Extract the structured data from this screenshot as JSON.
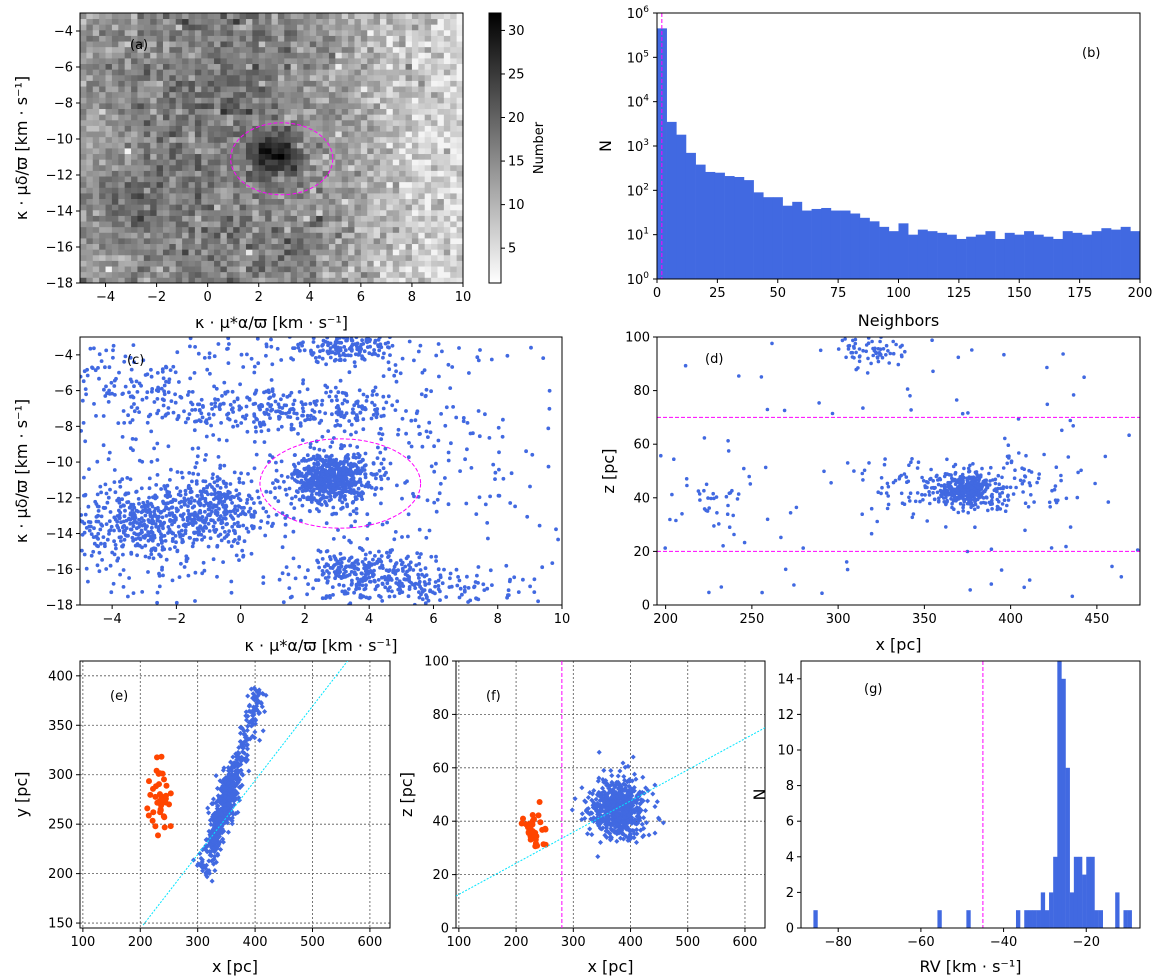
{
  "colors": {
    "blue": "#4169e1",
    "orange": "#ff4500",
    "magenta": "#ff00ff",
    "cyan": "#00e5ff",
    "grid": "#555555"
  },
  "chart_data": [
    {
      "id": "a",
      "type": "heatmap",
      "panel_label": "(a)",
      "xlabel": "κ · μ*α/ϖ   [km · s⁻¹]",
      "ylabel": "κ · μδ/ϖ   [km · s⁻¹]",
      "xlim": [
        -5,
        10
      ],
      "ylim": [
        -18,
        -3
      ],
      "x_ticks": [
        -4,
        -2,
        0,
        2,
        4,
        6,
        8,
        10
      ],
      "y_ticks": [
        -18,
        -16,
        -14,
        -12,
        -10,
        -8,
        -6,
        -4
      ],
      "x_tick_labels": [
        "−4",
        "−2",
        "0",
        "2",
        "4",
        "6",
        "8",
        "10"
      ],
      "y_tick_labels": [
        "−18",
        "−16",
        "−14",
        "−12",
        "−10",
        "−8",
        "−6",
        "−4"
      ],
      "colorbar": {
        "label": "Number",
        "range": [
          1,
          32
        ],
        "ticks": [
          5,
          10,
          15,
          20,
          25,
          30
        ],
        "tick_labels": [
          "5",
          "10",
          "15",
          "20",
          "25",
          "30"
        ]
      },
      "cluster_peak": [
        2.6,
        -10.9
      ],
      "circle": {
        "center": [
          2.9,
          -11.1
        ],
        "radius": 2.0
      }
    },
    {
      "id": "b",
      "type": "bar",
      "panel_label": "(b)",
      "xlabel": "Neighbors",
      "ylabel": "N",
      "xlim": [
        0,
        200
      ],
      "ylim": [
        1,
        1000000
      ],
      "log_y": true,
      "x_ticks": [
        0,
        25,
        50,
        75,
        100,
        125,
        150,
        175,
        200
      ],
      "x_tick_labels": [
        "0",
        "25",
        "50",
        "75",
        "100",
        "125",
        "150",
        "175",
        "200"
      ],
      "y_ticks": [
        1,
        10,
        100,
        1000,
        10000,
        100000,
        1000000
      ],
      "y_tick_mantissa": [
        "10",
        "10",
        "10",
        "10",
        "10",
        "10",
        "10"
      ],
      "y_tick_exponents": [
        "0",
        "1",
        "2",
        "3",
        "4",
        "5",
        "6"
      ],
      "bin_width": 4,
      "bin_starts": [
        0,
        4,
        8,
        12,
        16,
        20,
        24,
        28,
        32,
        36,
        40,
        44,
        48,
        52,
        56,
        60,
        64,
        68,
        72,
        76,
        80,
        84,
        88,
        92,
        96,
        100,
        104,
        108,
        112,
        116,
        120,
        124,
        128,
        132,
        136,
        140,
        144,
        148,
        152,
        156,
        160,
        164,
        168,
        172,
        176,
        180,
        184,
        188,
        192,
        196
      ],
      "counts": [
        450000,
        3500,
        1800,
        700,
        380,
        260,
        250,
        210,
        200,
        170,
        90,
        70,
        70,
        45,
        55,
        35,
        38,
        40,
        35,
        35,
        30,
        24,
        20,
        15,
        12,
        18,
        10,
        13,
        12,
        11,
        10,
        8,
        9,
        10,
        12,
        8,
        11,
        10,
        12,
        10,
        9,
        8,
        12,
        11,
        10,
        12,
        14,
        13,
        15,
        12
      ],
      "vline_x": 2
    },
    {
      "id": "c",
      "type": "scatter",
      "panel_label": "(c)",
      "xlabel": "κ · μ*α/ϖ   [km · s⁻¹]",
      "ylabel": "κ · μδ/ϖ   [km · s⁻¹]",
      "xlim": [
        -5,
        10
      ],
      "ylim": [
        -18,
        -3
      ],
      "x_ticks": [
        -4,
        -2,
        0,
        2,
        4,
        6,
        8,
        10
      ],
      "y_ticks": [
        -18,
        -16,
        -14,
        -12,
        -10,
        -8,
        -6,
        -4
      ],
      "x_tick_labels": [
        "−4",
        "−2",
        "0",
        "2",
        "4",
        "6",
        "8",
        "10"
      ],
      "y_tick_labels": [
        "−18",
        "−16",
        "−14",
        "−12",
        "−10",
        "−8",
        "−6",
        "−4"
      ],
      "clusters": [
        {
          "center": [
            2.8,
            -10.9
          ],
          "spread": [
            0.55,
            0.7
          ],
          "n": 650
        },
        {
          "center": [
            -3.0,
            -13.5
          ],
          "spread": [
            1.2,
            1.1
          ],
          "n": 420
        },
        {
          "center": [
            -0.8,
            -12.5
          ],
          "spread": [
            1.0,
            0.9
          ],
          "n": 300
        },
        {
          "center": [
            1.2,
            -7.2
          ],
          "spread": [
            2.0,
            0.6
          ],
          "n": 260
        },
        {
          "center": [
            3.2,
            -3.6
          ],
          "spread": [
            0.9,
            0.4
          ],
          "n": 160
        },
        {
          "center": [
            3.7,
            -16.1
          ],
          "spread": [
            0.9,
            0.6
          ],
          "n": 220
        },
        {
          "center": [
            6.0,
            -17.0
          ],
          "spread": [
            1.6,
            0.7
          ],
          "n": 150
        },
        {
          "center": [
            -3.0,
            -5.8
          ],
          "spread": [
            1.3,
            1.1
          ],
          "n": 110
        },
        {
          "center": [
            6.0,
            -9.5
          ],
          "spread": [
            2.0,
            2.5
          ],
          "n": 130
        }
      ],
      "background_n": 380,
      "circle": {
        "center": [
          3.1,
          -11.2
        ],
        "radius": 2.5
      }
    },
    {
      "id": "d",
      "type": "scatter",
      "panel_label": "(d)",
      "xlabel": "x [pc]",
      "ylabel": "z [pc]",
      "xlim": [
        195,
        475
      ],
      "ylim": [
        0,
        100
      ],
      "x_ticks": [
        200,
        250,
        300,
        350,
        400,
        450
      ],
      "y_ticks": [
        0,
        20,
        40,
        60,
        80,
        100
      ],
      "x_tick_labels": [
        "200",
        "250",
        "300",
        "350",
        "400",
        "450"
      ],
      "y_tick_labels": [
        "0",
        "20",
        "40",
        "60",
        "80",
        "100"
      ],
      "clusters": [
        {
          "center": [
            374,
            43
          ],
          "spread": [
            8,
            2.6
          ],
          "n": 320
        },
        {
          "center": [
            375,
            44
          ],
          "spread": [
            30,
            5.5
          ],
          "n": 220
        },
        {
          "center": [
            318,
            95
          ],
          "spread": [
            9,
            3
          ],
          "n": 70
        },
        {
          "center": [
            225,
            38
          ],
          "spread": [
            12,
            5
          ],
          "n": 30
        }
      ],
      "background_n": 90,
      "hlines_y": [
        20,
        70
      ]
    },
    {
      "id": "e",
      "type": "scatter",
      "panel_label": "(e)",
      "xlabel": "x  [pc]",
      "ylabel": "y  [pc]",
      "xlim": [
        95,
        635
      ],
      "ylim": [
        145,
        415
      ],
      "x_ticks": [
        100,
        200,
        300,
        400,
        500,
        600
      ],
      "y_ticks": [
        150,
        200,
        250,
        300,
        350,
        400
      ],
      "x_tick_labels": [
        "100",
        "200",
        "300",
        "400",
        "500",
        "600"
      ],
      "y_tick_labels": [
        "150",
        "200",
        "250",
        "300",
        "350",
        "400"
      ],
      "blue_band": {
        "from": [
          310,
          200
        ],
        "to": [
          410,
          385
        ],
        "core": [
          365,
          268
        ],
        "n": 650
      },
      "orange_group": {
        "center": [
          232,
          272
        ],
        "spread": [
          9,
          17
        ],
        "n": 40
      },
      "fit_line": [
        [
          205,
          148
        ],
        [
          565,
          418
        ]
      ]
    },
    {
      "id": "f",
      "type": "scatter",
      "panel_label": "(f)",
      "xlabel": "x  [pc]",
      "ylabel": "z  [pc]",
      "xlim": [
        95,
        635
      ],
      "ylim": [
        0,
        100
      ],
      "x_ticks": [
        100,
        200,
        300,
        400,
        500,
        600
      ],
      "y_ticks": [
        0,
        20,
        40,
        60,
        80,
        100
      ],
      "x_tick_labels": [
        "100",
        "200",
        "300",
        "400",
        "500",
        "600"
      ],
      "y_tick_labels": [
        "0",
        "20",
        "40",
        "60",
        "80",
        "100"
      ],
      "blue_cluster": {
        "center": [
          380,
          45
        ],
        "spread": [
          25,
          5.5
        ],
        "n": 650
      },
      "orange_group": {
        "center": [
          232,
          38
        ],
        "spread": [
          12,
          4
        ],
        "n": 40
      },
      "vline_x": 280,
      "fit_line": [
        [
          95,
          12
        ],
        [
          635,
          75
        ]
      ]
    },
    {
      "id": "g",
      "type": "bar",
      "panel_label": "(g)",
      "xlabel": "RV   [km · s⁻¹]",
      "ylabel": "N",
      "xlim": [
        -89,
        -7
      ],
      "ylim": [
        0,
        15
      ],
      "x_ticks": [
        -80,
        -60,
        -40,
        -20
      ],
      "x_tick_labels": [
        "−80",
        "−60",
        "−40",
        "−20"
      ],
      "y_ticks": [
        0,
        2,
        4,
        6,
        8,
        10,
        12,
        14
      ],
      "y_tick_labels": [
        "0",
        "2",
        "4",
        "6",
        "8",
        "10",
        "12",
        "14"
      ],
      "bin_width": 1,
      "bin_starts": [
        -86,
        -56,
        -49,
        -37,
        -35,
        -34,
        -33,
        -32,
        -31,
        -30,
        -29,
        -28,
        -27,
        -26,
        -25,
        -24,
        -23,
        -22,
        -21,
        -20,
        -19,
        -18,
        -17,
        -13,
        -11,
        -10
      ],
      "counts": [
        1,
        1,
        1,
        1,
        1,
        1,
        1,
        1,
        2,
        1,
        2,
        4,
        15,
        14,
        9,
        2,
        4,
        4,
        3,
        4,
        4,
        1,
        1,
        2,
        1,
        1
      ],
      "vline_x": -45
    }
  ]
}
